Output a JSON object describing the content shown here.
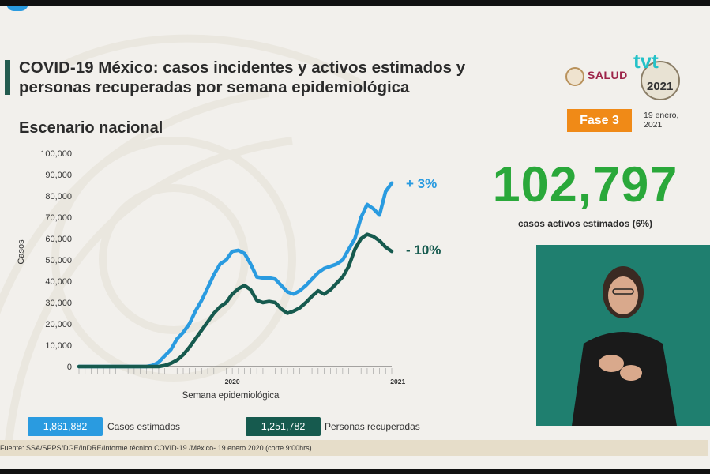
{
  "title": "COVID-19 México: casos incidentes y activos estimados y personas recuperadas por semana epidemiológica",
  "subtitle": "Escenario nacional",
  "logos": {
    "salud": "SALUD",
    "tvt_year": "2021"
  },
  "phase_badge": "Fase 3",
  "date": "19 enero, 2021",
  "kpi": {
    "value": "102,797",
    "caption": "casos activos estimados (6%)"
  },
  "legend": [
    {
      "value": "1,861,882",
      "label": "Casos estimados",
      "color": "#2a9be0"
    },
    {
      "value": "1,251,782",
      "label": "Personas recuperadas",
      "color": "#165a4e"
    }
  ],
  "source": "Fuente: SSA/SPPS/DGE/InDRE/Informe técnico.COVID-19 /México- 19 enero 2020 (corte 9:00hrs)",
  "colors": {
    "accent": "#235b4e",
    "kpi": "#2aa83a",
    "badge": "#f08a17",
    "interpreter_bg": "#1f7f6f"
  },
  "chart_data": {
    "type": "line",
    "xlabel": "Semana epidemiológica",
    "ylabel": "Casos",
    "ylim": [
      0,
      100000
    ],
    "yticks": [
      "0",
      "10,000",
      "20,000",
      "30,000",
      "40,000",
      "50,000",
      "60,000",
      "70,000",
      "80,000",
      "90,000",
      "100,000"
    ],
    "year_labels": [
      {
        "label": "2020",
        "week": 25
      },
      {
        "label": "2021",
        "week": 52
      }
    ],
    "grid": false,
    "series": [
      {
        "name": "Casos estimados",
        "change": "+ 3%",
        "color": "#2a9be0",
        "values": [
          0,
          0,
          0,
          0,
          0,
          0,
          0,
          0,
          0,
          0,
          0,
          0,
          500,
          2000,
          5000,
          8000,
          13000,
          16000,
          20000,
          26000,
          31000,
          37000,
          43000,
          48000,
          50000,
          54000,
          54500,
          53000,
          48000,
          42000,
          41500,
          41500,
          41000,
          38000,
          35000,
          34000,
          35500,
          38000,
          41000,
          44000,
          46000,
          47000,
          48000,
          50000,
          55000,
          60000,
          70000,
          76000,
          74000,
          71000,
          82000,
          86000
        ]
      },
      {
        "name": "Personas recuperadas",
        "change": "- 10%",
        "color": "#165a4e",
        "values": [
          0,
          0,
          0,
          0,
          0,
          0,
          0,
          0,
          0,
          0,
          0,
          0,
          0,
          0,
          500,
          1500,
          3000,
          5500,
          9000,
          13000,
          17000,
          21000,
          25000,
          28000,
          30000,
          34000,
          36500,
          38000,
          36000,
          31000,
          30000,
          30500,
          30000,
          27000,
          25000,
          26000,
          27500,
          30000,
          33000,
          35500,
          34000,
          36000,
          39000,
          42000,
          47000,
          55000,
          60000,
          62000,
          61000,
          59000,
          56000,
          54000
        ]
      }
    ]
  }
}
